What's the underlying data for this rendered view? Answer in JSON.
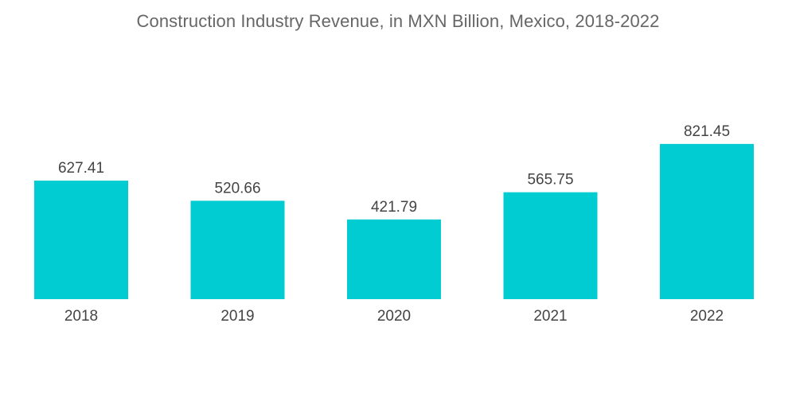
{
  "chart_data": {
    "type": "bar",
    "title": "Construction Industry Revenue, in MXN Billion, Mexico, 2018-2022",
    "xlabel": "",
    "ylabel": "",
    "categories": [
      "2018",
      "2019",
      "2020",
      "2021",
      "2022"
    ],
    "values": [
      627.41,
      520.66,
      421.79,
      565.75,
      821.45
    ],
    "value_labels": [
      "627.41",
      "520.66",
      "421.79",
      "565.75",
      "821.45"
    ],
    "ylim": [
      0,
      900
    ],
    "grid": false,
    "legend": "none",
    "bar_color": "#00CCD1",
    "label_color": "#444444",
    "title_color": "#666666"
  }
}
